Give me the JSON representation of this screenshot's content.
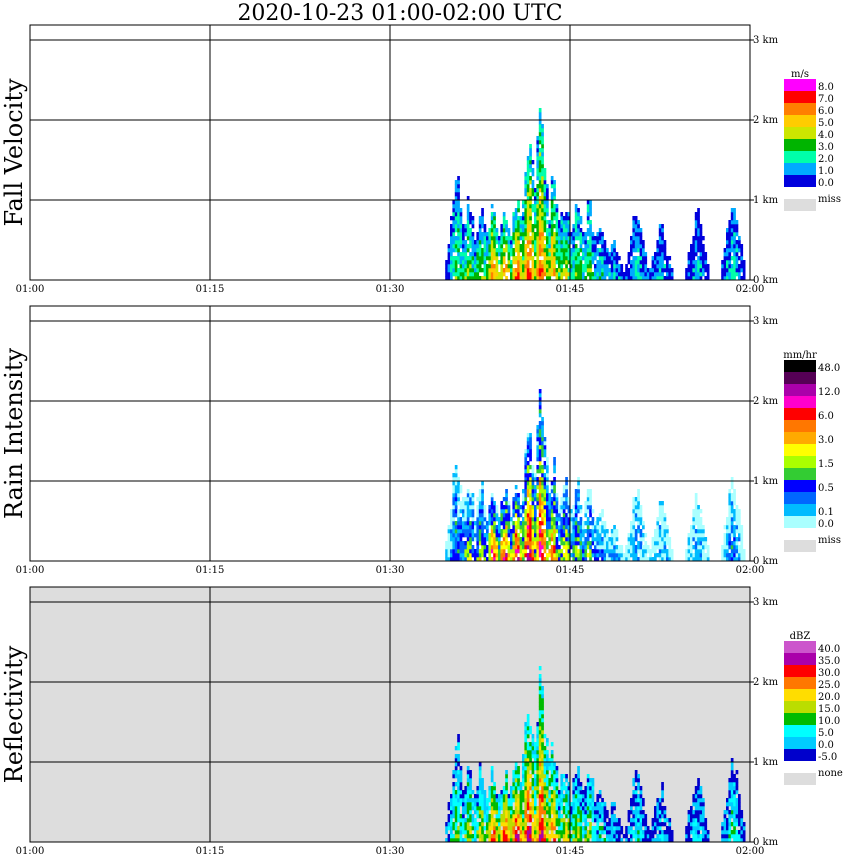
{
  "title": "2020-10-23   01:00-02:00 UTC",
  "chart_data": {
    "type": "heatmap",
    "x_ticks": [
      "01:00",
      "01:15",
      "01:30",
      "01:45",
      "02:00"
    ],
    "xlim": [
      "01:00",
      "02:00"
    ],
    "y_ticks": [
      "0 km",
      "1 km",
      "2 km",
      "3 km"
    ],
    "ylim_km": [
      0,
      3.0
    ],
    "grid": true,
    "panels": [
      {
        "name": "Fall Velocity",
        "legend_unit": "m/s",
        "legend_labels": [
          "8.0",
          "7.0",
          "6.0",
          "5.0",
          "4.0",
          "3.0",
          "2.0",
          "1.0",
          "0.0"
        ],
        "legend_colors": [
          "#ff00ff",
          "#ff0000",
          "#ff7f00",
          "#ffcc00",
          "#cce600",
          "#00b400",
          "#00ffaa",
          "#00aaff",
          "#0000dd"
        ],
        "missing_label": "miss",
        "missing_color": "#dddddd",
        "background": "#ffffff"
      },
      {
        "name": "Rain Intensity",
        "legend_unit": "mm/hr",
        "legend_labels": [
          "48.0",
          "",
          "12.0",
          "",
          "6.0",
          "",
          "3.0",
          "",
          "1.5",
          "",
          "0.5",
          "",
          "0.1",
          "0.0"
        ],
        "legend_colors": [
          "#000000",
          "#550055",
          "#aa00aa",
          "#ff00cc",
          "#ff0000",
          "#ff7700",
          "#ffaa00",
          "#ffff00",
          "#aaff00",
          "#33cc33",
          "#0000ff",
          "#0066ff",
          "#00bbff",
          "#aaffff"
        ],
        "missing_label": "miss",
        "missing_color": "#dddddd",
        "background": "#ffffff"
      },
      {
        "name": "Reflectivity",
        "legend_unit": "dBZ",
        "legend_labels": [
          "40.0",
          "35.0",
          "30.0",
          "25.0",
          "20.0",
          "15.0",
          "10.0",
          "5.0",
          "0.0",
          "-5.0"
        ],
        "legend_colors": [
          "#cc55cc",
          "#aa00aa",
          "#ff0000",
          "#ff7700",
          "#ffdd00",
          "#bbdd00",
          "#00bb00",
          "#00ffff",
          "#00ccff",
          "#0000cc"
        ],
        "missing_label": "none",
        "missing_color": "#dddddd",
        "background": "#dddddd"
      }
    ],
    "echo_columns": [
      {
        "x": "01:35:30",
        "top_km": 1.35,
        "intensity": 0.45
      },
      {
        "x": "01:36:30",
        "top_km": 1.05,
        "intensity": 0.55
      },
      {
        "x": "01:37:30",
        "top_km": 1.0,
        "intensity": 0.6
      },
      {
        "x": "01:38:30",
        "top_km": 0.95,
        "intensity": 0.85
      },
      {
        "x": "01:39:30",
        "top_km": 1.0,
        "intensity": 0.9
      },
      {
        "x": "01:40:30",
        "top_km": 1.1,
        "intensity": 0.95
      },
      {
        "x": "01:41:30",
        "top_km": 1.95,
        "intensity": 1.0
      },
      {
        "x": "01:42:30",
        "top_km": 2.2,
        "intensity": 0.95
      },
      {
        "x": "01:43:30",
        "top_km": 1.3,
        "intensity": 0.8
      },
      {
        "x": "01:44:30",
        "top_km": 1.05,
        "intensity": 0.65
      },
      {
        "x": "01:45:30",
        "top_km": 1.1,
        "intensity": 0.55
      },
      {
        "x": "01:46:30",
        "top_km": 1.0,
        "intensity": 0.5
      },
      {
        "x": "01:47:30",
        "top_km": 0.7,
        "intensity": 0.35
      },
      {
        "x": "01:48:30",
        "top_km": 0.5,
        "intensity": 0.25
      },
      {
        "x": "01:50:30",
        "top_km": 1.0,
        "intensity": 0.3
      },
      {
        "x": "01:52:30",
        "top_km": 0.75,
        "intensity": 0.25
      },
      {
        "x": "01:55:30",
        "top_km": 0.9,
        "intensity": 0.25
      },
      {
        "x": "01:58:30",
        "top_km": 1.15,
        "intensity": 0.35
      }
    ]
  }
}
